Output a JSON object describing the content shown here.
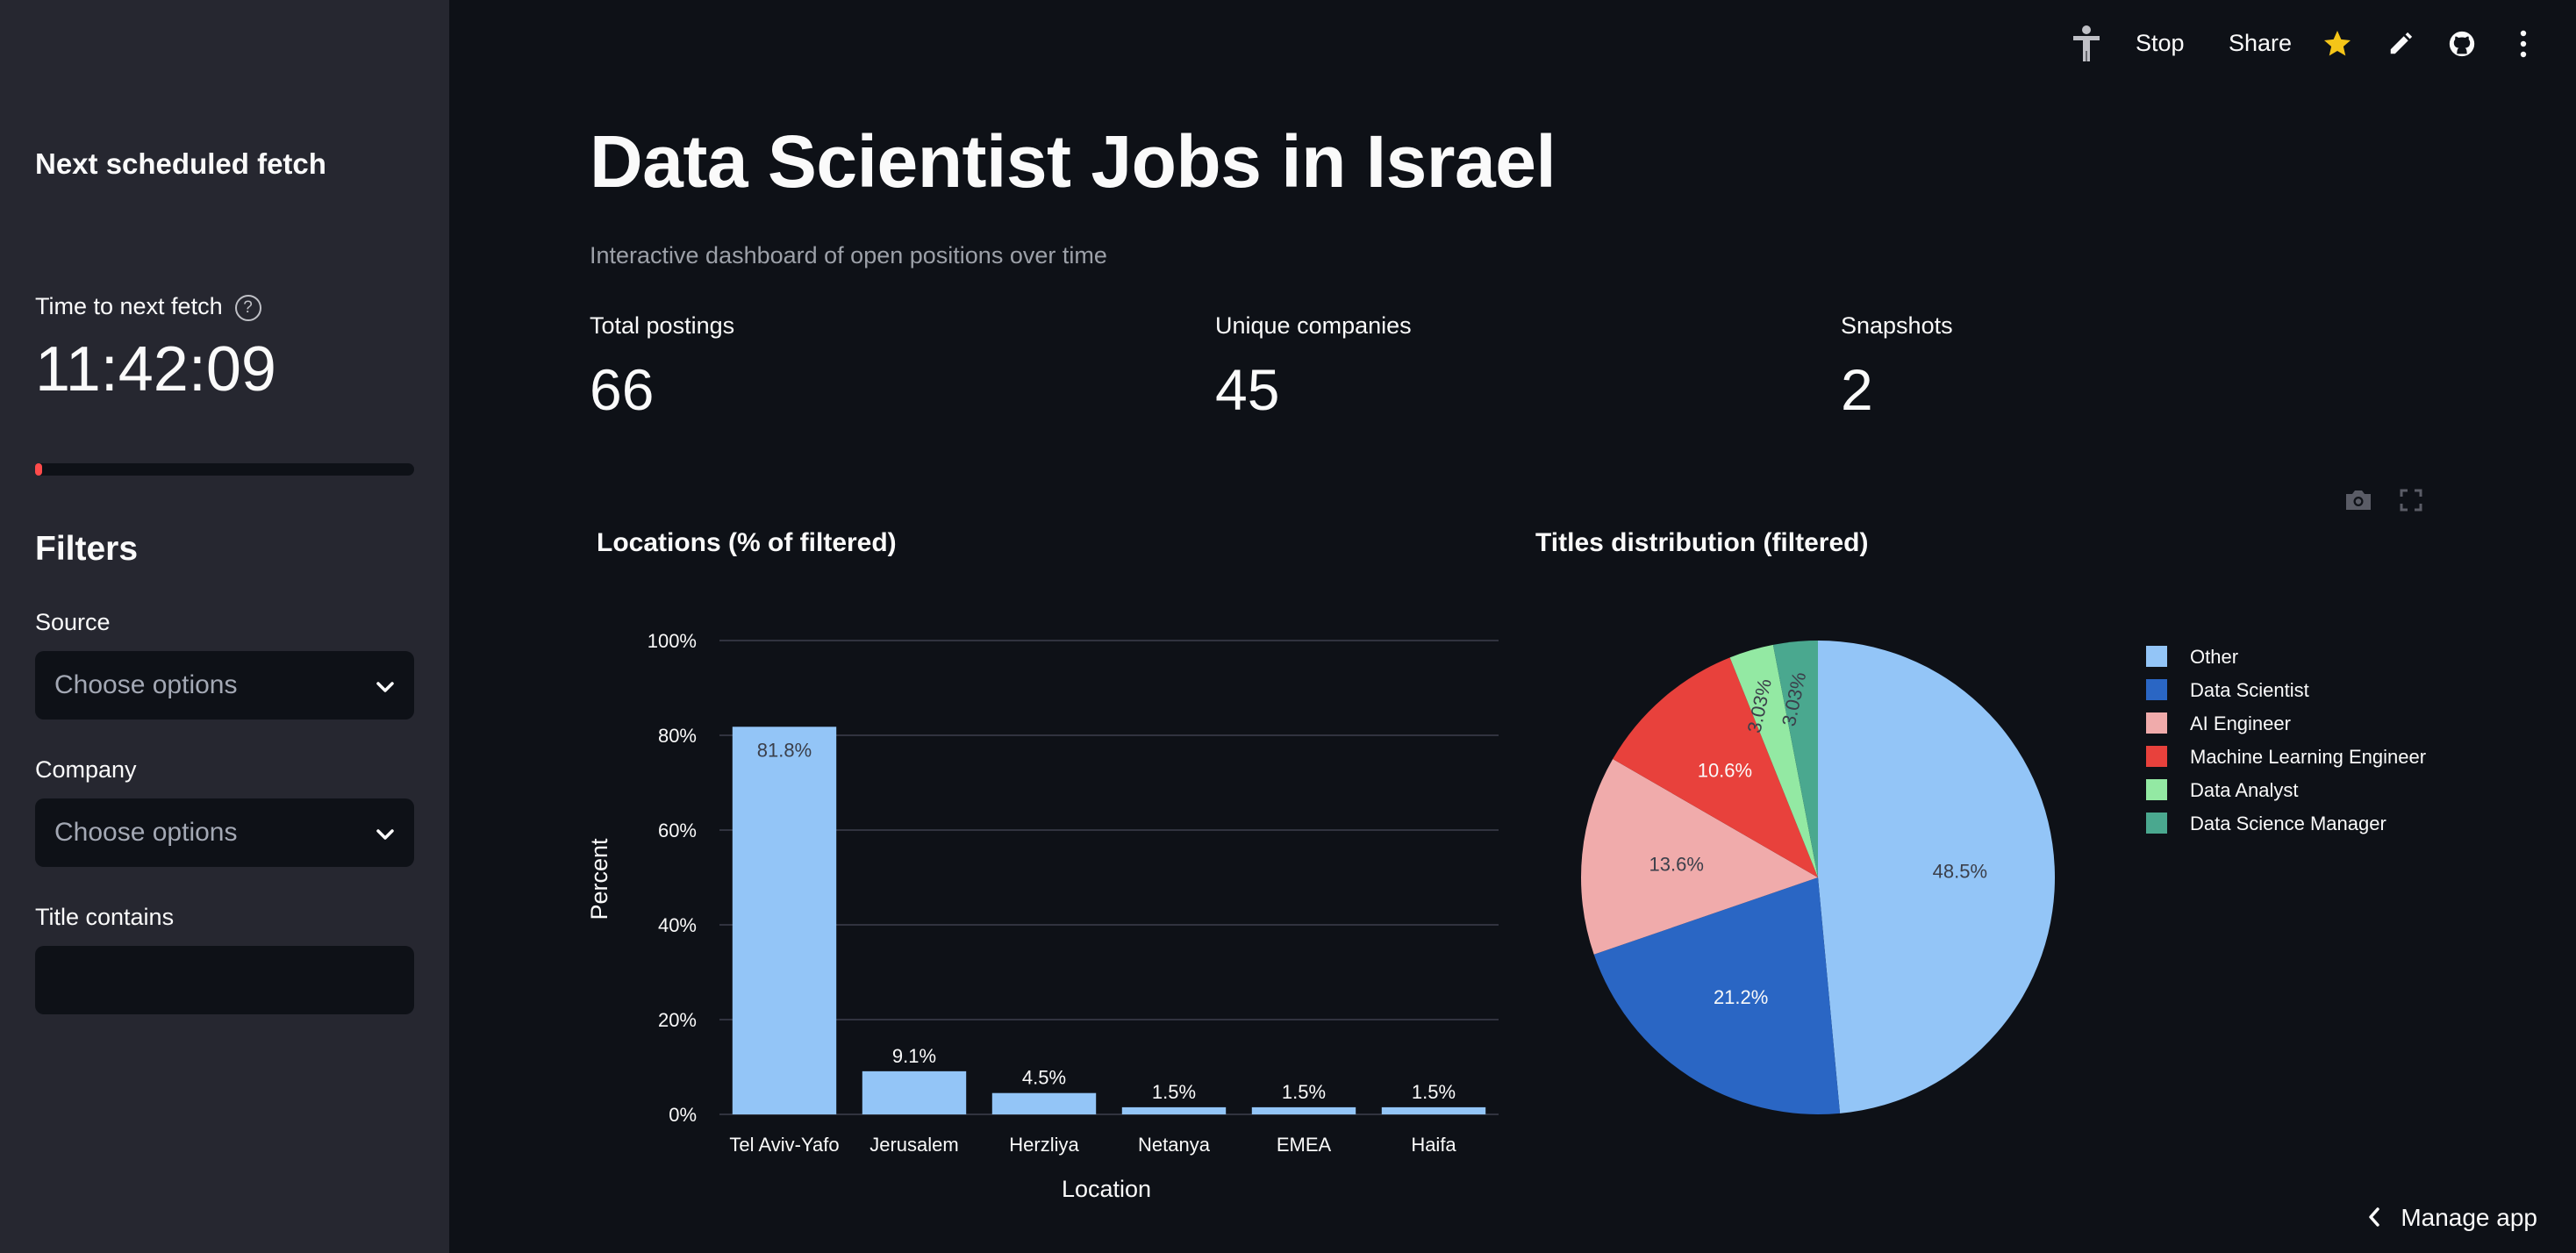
{
  "sidebar": {
    "heading": "Next scheduled fetch",
    "timer_label": "Time to next fetch",
    "help_glyph": "?",
    "timer_value": "11:42:09",
    "progress_fraction": 0.01,
    "filters_heading": "Filters",
    "source_label": "Source",
    "source_placeholder": "Choose options",
    "company_label": "Company",
    "company_placeholder": "Choose options",
    "title_contains_label": "Title contains",
    "title_contains_value": ""
  },
  "toolbar": {
    "stop_label": "Stop",
    "share_label": "Share"
  },
  "main": {
    "title": "Data Scientist Jobs in Israel",
    "subtitle": "Interactive dashboard of open positions over time",
    "metrics": [
      {
        "label": "Total postings",
        "value": "66"
      },
      {
        "label": "Unique companies",
        "value": "45"
      },
      {
        "label": "Snapshots",
        "value": "2"
      }
    ]
  },
  "footer": {
    "manage_label": "Manage app"
  },
  "colors": {
    "accent": "#ff4b4b",
    "bar": "#93c5f7"
  },
  "chart_data": [
    {
      "type": "bar",
      "title": "Locations (% of filtered)",
      "xlabel": "Location",
      "ylabel": "Percent",
      "categories": [
        "Tel Aviv-Yafo",
        "Jerusalem",
        "Herzliya",
        "Netanya",
        "EMEA",
        "Haifa"
      ],
      "values": [
        81.8,
        9.1,
        4.5,
        1.5,
        1.5,
        1.5
      ],
      "data_labels": [
        "81.8%",
        "9.1%",
        "4.5%",
        "1.5%",
        "1.5%",
        "1.5%"
      ],
      "yticks": [
        "0%",
        "20%",
        "40%",
        "60%",
        "80%",
        "100%"
      ],
      "ylim": [
        0,
        100
      ],
      "grid": true
    },
    {
      "type": "pie",
      "title": "Titles distribution (filtered)",
      "legend_position": "right",
      "slices": [
        {
          "name": "Other",
          "value": 48.5,
          "label": "48.5%",
          "color": "#93c5f7"
        },
        {
          "name": "Data Scientist",
          "value": 21.2,
          "label": "21.2%",
          "color": "#2a66c4"
        },
        {
          "name": "AI Engineer",
          "value": 13.6,
          "label": "13.6%",
          "color": "#f0abab"
        },
        {
          "name": "Machine Learning Engineer",
          "value": 10.6,
          "label": "10.6%",
          "color": "#e8413c"
        },
        {
          "name": "Data Analyst",
          "value": 3.03,
          "label": "3.03%",
          "color": "#93e9a3"
        },
        {
          "name": "Data Science Manager",
          "value": 3.03,
          "label": "3.03%",
          "color": "#4aa88f"
        }
      ]
    }
  ]
}
